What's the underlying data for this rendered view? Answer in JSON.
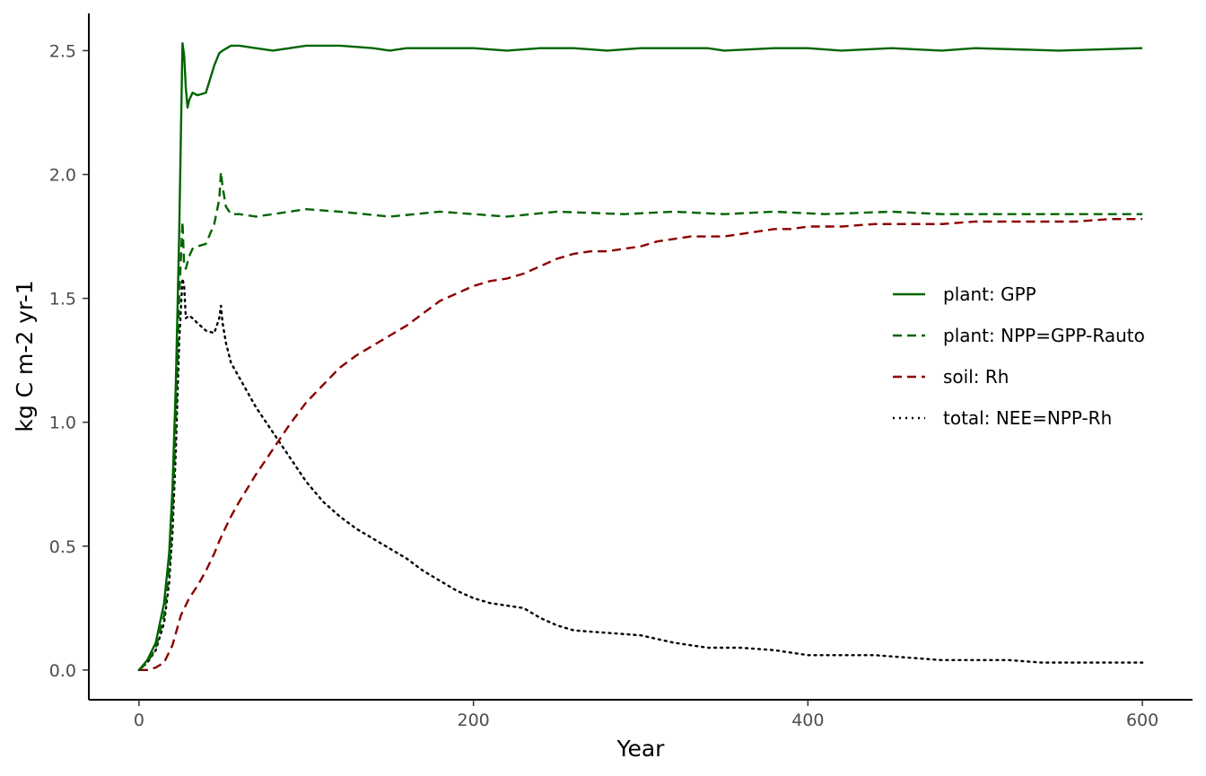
{
  "chart_data": {
    "type": "line",
    "title": "",
    "xlabel": "Year",
    "ylabel": "kg C m-2 yr-1",
    "xlim": [
      -30,
      630
    ],
    "ylim": [
      -0.12,
      2.65
    ],
    "x_ticks": [
      0,
      200,
      400,
      600
    ],
    "y_ticks": [
      0.0,
      0.5,
      1.0,
      1.5,
      2.0,
      2.5
    ],
    "x_tick_labels": [
      "0",
      "200",
      "400",
      "600"
    ],
    "y_tick_labels": [
      "0.0",
      "0.5",
      "1.0",
      "1.5",
      "2.0",
      "2.5"
    ],
    "grid": false,
    "legend_position": "right",
    "series": [
      {
        "name": "plant: GPP",
        "color": "#006400",
        "dash": "solid",
        "x": [
          0,
          5,
          10,
          15,
          18,
          20,
          22,
          24,
          26,
          27,
          28,
          29,
          30,
          32,
          35,
          40,
          45,
          48,
          50,
          55,
          60,
          70,
          80,
          90,
          100,
          110,
          120,
          140,
          150,
          160,
          180,
          200,
          220,
          240,
          260,
          280,
          300,
          320,
          340,
          350,
          380,
          400,
          420,
          450,
          480,
          500,
          550,
          600
        ],
        "y": [
          0.0,
          0.04,
          0.11,
          0.27,
          0.47,
          0.73,
          1.15,
          1.75,
          2.53,
          2.48,
          2.35,
          2.27,
          2.3,
          2.33,
          2.32,
          2.33,
          2.44,
          2.49,
          2.5,
          2.52,
          2.52,
          2.51,
          2.5,
          2.51,
          2.52,
          2.52,
          2.52,
          2.51,
          2.5,
          2.51,
          2.51,
          2.51,
          2.5,
          2.51,
          2.51,
          2.5,
          2.51,
          2.51,
          2.51,
          2.5,
          2.51,
          2.51,
          2.5,
          2.51,
          2.5,
          2.51,
          2.5,
          2.51
        ]
      },
      {
        "name": "plant: NPP=GPP-Rauto",
        "color": "#006400",
        "dash": "dashed",
        "x": [
          0,
          5,
          10,
          15,
          18,
          20,
          22,
          24,
          26,
          27,
          28,
          30,
          32,
          35,
          40,
          45,
          48,
          49,
          50,
          52,
          55,
          60,
          70,
          80,
          100,
          120,
          150,
          180,
          220,
          250,
          290,
          320,
          350,
          380,
          410,
          450,
          480,
          520,
          560,
          600
        ],
        "y": [
          0.0,
          0.03,
          0.09,
          0.22,
          0.4,
          0.64,
          1.0,
          1.5,
          1.81,
          1.63,
          1.62,
          1.67,
          1.7,
          1.71,
          1.72,
          1.8,
          1.9,
          2.01,
          1.95,
          1.87,
          1.84,
          1.84,
          1.83,
          1.84,
          1.86,
          1.85,
          1.83,
          1.85,
          1.83,
          1.85,
          1.84,
          1.85,
          1.84,
          1.85,
          1.84,
          1.85,
          1.84,
          1.84,
          1.84,
          1.84
        ]
      },
      {
        "name": "soil: Rh",
        "color": "#8B0000",
        "dash": "dashed",
        "x": [
          0,
          5,
          10,
          15,
          20,
          25,
          30,
          35,
          40,
          45,
          48,
          50,
          55,
          60,
          70,
          80,
          90,
          100,
          110,
          120,
          130,
          140,
          150,
          160,
          170,
          180,
          190,
          200,
          210,
          220,
          230,
          240,
          250,
          260,
          270,
          280,
          290,
          300,
          310,
          320,
          330,
          340,
          350,
          360,
          370,
          380,
          390,
          400,
          420,
          440,
          460,
          480,
          500,
          520,
          540,
          560,
          580,
          600
        ],
        "y": [
          0.0,
          0.0,
          0.01,
          0.03,
          0.1,
          0.22,
          0.29,
          0.34,
          0.4,
          0.47,
          0.52,
          0.55,
          0.62,
          0.68,
          0.79,
          0.89,
          0.99,
          1.08,
          1.15,
          1.22,
          1.27,
          1.31,
          1.35,
          1.39,
          1.44,
          1.49,
          1.52,
          1.55,
          1.57,
          1.58,
          1.6,
          1.63,
          1.66,
          1.68,
          1.69,
          1.69,
          1.7,
          1.71,
          1.73,
          1.74,
          1.75,
          1.75,
          1.75,
          1.76,
          1.77,
          1.78,
          1.78,
          1.79,
          1.79,
          1.8,
          1.8,
          1.8,
          1.81,
          1.81,
          1.81,
          1.81,
          1.82,
          1.82
        ]
      },
      {
        "name": "total: NEE=NPP-Rh",
        "color": "#000000",
        "dash": "dotted",
        "x": [
          0,
          5,
          10,
          15,
          18,
          20,
          22,
          24,
          26,
          27,
          28,
          30,
          32,
          35,
          40,
          45,
          48,
          49,
          50,
          52,
          55,
          60,
          70,
          80,
          90,
          100,
          110,
          120,
          130,
          140,
          150,
          160,
          170,
          180,
          190,
          200,
          210,
          220,
          230,
          240,
          250,
          260,
          280,
          300,
          320,
          340,
          360,
          380,
          400,
          420,
          440,
          460,
          480,
          500,
          520,
          540,
          560,
          580,
          600
        ],
        "y": [
          0.0,
          0.03,
          0.08,
          0.19,
          0.35,
          0.55,
          0.88,
          1.32,
          1.58,
          1.55,
          1.42,
          1.43,
          1.42,
          1.4,
          1.37,
          1.36,
          1.42,
          1.47,
          1.4,
          1.32,
          1.24,
          1.18,
          1.06,
          0.96,
          0.86,
          0.76,
          0.68,
          0.62,
          0.57,
          0.53,
          0.49,
          0.45,
          0.4,
          0.36,
          0.32,
          0.29,
          0.27,
          0.26,
          0.25,
          0.21,
          0.18,
          0.16,
          0.15,
          0.14,
          0.11,
          0.09,
          0.09,
          0.08,
          0.06,
          0.06,
          0.06,
          0.05,
          0.04,
          0.04,
          0.04,
          0.03,
          0.03,
          0.03,
          0.03
        ]
      }
    ]
  }
}
